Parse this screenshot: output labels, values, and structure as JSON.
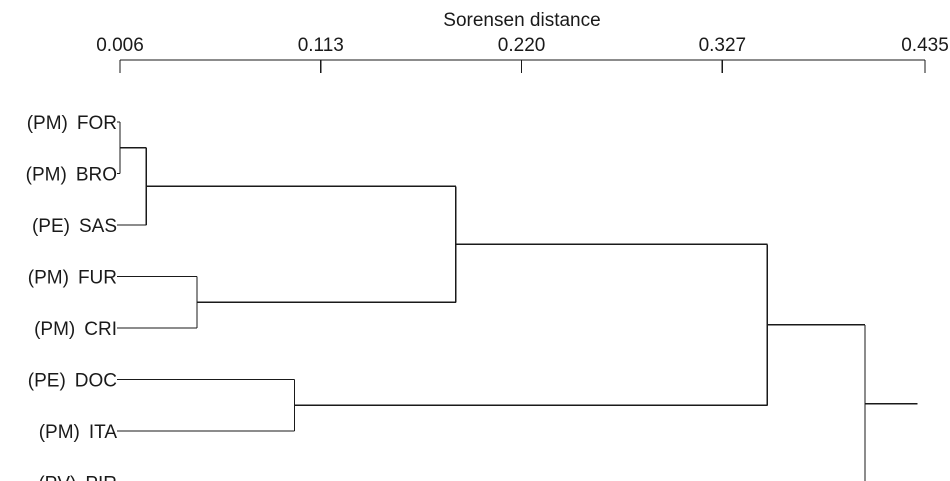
{
  "chart_data": {
    "type": "dendrogram",
    "xlabel": "Sorensen distance",
    "ticks": [
      "0.006",
      "0.113",
      "0.220",
      "0.327",
      "0.435"
    ],
    "xlim": [
      0.006,
      0.435
    ],
    "leaves": [
      {
        "group": "(PM)",
        "code": "FOR"
      },
      {
        "group": "(PM)",
        "code": "BRO"
      },
      {
        "group": "(PE)",
        "code": "SAS"
      },
      {
        "group": "(PM)",
        "code": "FUR"
      },
      {
        "group": "(PM)",
        "code": "CRI"
      },
      {
        "group": "(PE)",
        "code": "DOC"
      },
      {
        "group": "(PM)",
        "code": "ITA"
      },
      {
        "group": "(PV)",
        "code": "PIR"
      }
    ],
    "merges": [
      {
        "id": "c1",
        "children": [
          "FOR",
          "BRO"
        ],
        "height": 0.006
      },
      {
        "id": "c2",
        "children": [
          "c1",
          "SAS"
        ],
        "height": 0.02
      },
      {
        "id": "c3",
        "children": [
          "FUR",
          "CRI"
        ],
        "height": 0.047
      },
      {
        "id": "c4",
        "children": [
          "c2",
          "c3"
        ],
        "height": 0.185
      },
      {
        "id": "c5",
        "children": [
          "DOC",
          "ITA"
        ],
        "height": 0.099
      },
      {
        "id": "c6",
        "children": [
          "c4",
          "c5"
        ],
        "height": 0.351
      },
      {
        "id": "c7",
        "children": [
          "c6",
          "PIR"
        ],
        "height": 0.403
      }
    ],
    "root_height": 0.431
  }
}
